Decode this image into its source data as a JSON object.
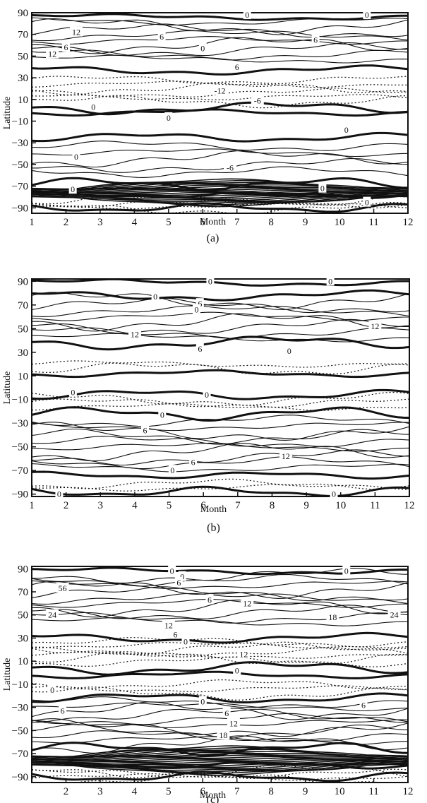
{
  "chart_data": [
    {
      "type": "contour",
      "panel_label": "(a)",
      "xlabel": "Month",
      "ylabel": "Latitude",
      "x_ticks": [
        "1",
        "2",
        "3",
        "4",
        "5",
        "6",
        "7",
        "8",
        "9",
        "10",
        "11",
        "12"
      ],
      "y_ticks": [
        "90",
        "70",
        "50",
        "30",
        "10",
        "-10",
        "-30",
        "-50",
        "-70",
        "-90"
      ],
      "xlim": [
        1,
        12
      ],
      "ylim": [
        -95,
        90
      ],
      "contour_interval": 6,
      "negative_contours": "dotted",
      "zero_contour": "bold",
      "contour_labels": [
        {
          "text": "0",
          "month": 7.3,
          "lat": 88
        },
        {
          "text": "0",
          "month": 10.8,
          "lat": 88
        },
        {
          "text": "12",
          "month": 2.3,
          "lat": 72
        },
        {
          "text": "6",
          "month": 4.8,
          "lat": 68
        },
        {
          "text": "6",
          "month": 9.3,
          "lat": 65
        },
        {
          "text": "6",
          "month": 2.0,
          "lat": 58
        },
        {
          "text": "12",
          "month": 1.6,
          "lat": 52
        },
        {
          "text": "0",
          "month": 6.0,
          "lat": 57
        },
        {
          "text": "6",
          "month": 7.0,
          "lat": 40
        },
        {
          "text": "-12",
          "month": 6.5,
          "lat": 18
        },
        {
          "text": "-6",
          "month": 7.6,
          "lat": 9
        },
        {
          "text": "0",
          "month": 2.8,
          "lat": 3
        },
        {
          "text": "0",
          "month": 5.0,
          "lat": -7
        },
        {
          "text": "0",
          "month": 10.2,
          "lat": -18
        },
        {
          "text": "0",
          "month": 2.3,
          "lat": -43
        },
        {
          "text": "-6",
          "month": 6.8,
          "lat": -53
        },
        {
          "text": "0",
          "month": 2.2,
          "lat": -73
        },
        {
          "text": "0",
          "month": 9.5,
          "lat": -72
        },
        {
          "text": "0",
          "month": 10.8,
          "lat": -85
        }
      ]
    },
    {
      "type": "contour",
      "panel_label": "(b)",
      "xlabel": "Month",
      "ylabel": "Latitude",
      "x_ticks": [
        "1",
        "2",
        "3",
        "4",
        "5",
        "6",
        "7",
        "8",
        "9",
        "10",
        "11",
        "12"
      ],
      "y_ticks": [
        "90",
        "70",
        "50",
        "30",
        "10",
        "-10",
        "-30",
        "-50",
        "-70",
        "-90"
      ],
      "xlim": [
        1,
        12
      ],
      "ylim": [
        -92,
        92
      ],
      "contour_interval": 6,
      "negative_contours": "dotted",
      "zero_contour": "bold",
      "contour_labels": [
        {
          "text": "0",
          "month": 6.2,
          "lat": 90
        },
        {
          "text": "0",
          "month": 9.7,
          "lat": 90
        },
        {
          "text": "0",
          "month": 4.6,
          "lat": 77
        },
        {
          "text": "6",
          "month": 5.9,
          "lat": 71
        },
        {
          "text": "0",
          "month": 5.8,
          "lat": 66
        },
        {
          "text": "12",
          "month": 4.0,
          "lat": 45
        },
        {
          "text": "12",
          "month": 11.0,
          "lat": 52
        },
        {
          "text": "6",
          "month": 5.9,
          "lat": 33
        },
        {
          "text": "0",
          "month": 8.5,
          "lat": 31
        },
        {
          "text": "0",
          "month": 2.2,
          "lat": -4
        },
        {
          "text": "0",
          "month": 6.1,
          "lat": -6
        },
        {
          "text": "0",
          "month": 4.8,
          "lat": -23
        },
        {
          "text": "6",
          "month": 4.3,
          "lat": -36
        },
        {
          "text": "12",
          "month": 8.4,
          "lat": -58
        },
        {
          "text": "6",
          "month": 5.7,
          "lat": -63
        },
        {
          "text": "0",
          "month": 5.1,
          "lat": -70
        },
        {
          "text": "0",
          "month": 1.8,
          "lat": -90
        },
        {
          "text": "0",
          "month": 9.8,
          "lat": -90
        }
      ]
    },
    {
      "type": "contour",
      "panel_label": "(c)",
      "xlabel": "Month",
      "ylabel": "Latitude",
      "x_ticks": [
        "",
        "2",
        "3",
        "4",
        "5",
        "6",
        "7",
        "8",
        "9",
        "10",
        "11",
        "12"
      ],
      "y_ticks": [
        "90",
        "70",
        "50",
        "30",
        "10",
        "-10",
        "-30",
        "-50",
        "-70",
        "-90"
      ],
      "xlim": [
        1,
        12
      ],
      "ylim": [
        -95,
        92
      ],
      "contour_interval": 6,
      "negative_contours": "dotted",
      "zero_contour": "bold",
      "contour_labels": [
        {
          "text": "0",
          "month": 5.1,
          "lat": 88
        },
        {
          "text": "0",
          "month": 5.4,
          "lat": 83
        },
        {
          "text": "0",
          "month": 10.2,
          "lat": 88
        },
        {
          "text": "6",
          "month": 5.3,
          "lat": 78
        },
        {
          "text": "56",
          "month": 1.9,
          "lat": 73
        },
        {
          "text": "6",
          "month": 6.2,
          "lat": 63
        },
        {
          "text": "12",
          "month": 7.3,
          "lat": 60
        },
        {
          "text": "24",
          "month": 1.6,
          "lat": 50
        },
        {
          "text": "18",
          "month": 9.8,
          "lat": 48
        },
        {
          "text": "24",
          "month": 11.6,
          "lat": 50
        },
        {
          "text": "12",
          "month": 5.0,
          "lat": 41
        },
        {
          "text": "6",
          "month": 5.2,
          "lat": 33
        },
        {
          "text": "0",
          "month": 5.5,
          "lat": 27
        },
        {
          "text": "12",
          "month": 7.2,
          "lat": 16
        },
        {
          "text": "0",
          "month": 7.0,
          "lat": 2
        },
        {
          "text": "0",
          "month": 1.6,
          "lat": -15
        },
        {
          "text": "6",
          "month": 1.9,
          "lat": -33
        },
        {
          "text": "0",
          "month": 6.0,
          "lat": -25
        },
        {
          "text": "6",
          "month": 6.7,
          "lat": -35
        },
        {
          "text": "12",
          "month": 6.9,
          "lat": -44
        },
        {
          "text": "18",
          "month": 6.6,
          "lat": -54
        },
        {
          "text": "6",
          "month": 10.7,
          "lat": -28
        }
      ]
    }
  ]
}
